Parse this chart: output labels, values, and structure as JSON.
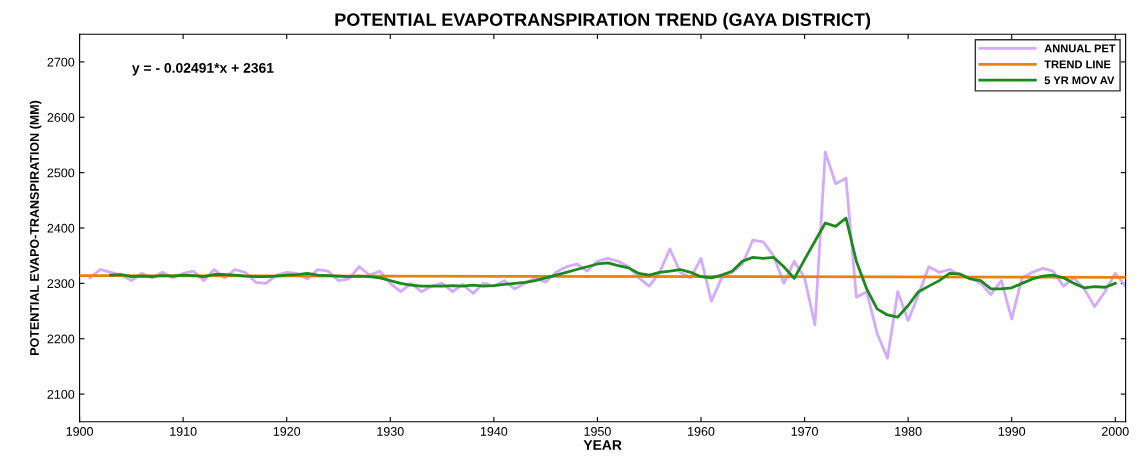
{
  "chart_data": {
    "type": "line",
    "title": "POTENTIAL EVAPOTRANSPIRATION TREND (GAYA DISTRICT)",
    "xlabel": "YEAR",
    "ylabel": "POTENTIAL EVAPO-TRANSPIRATION (MM)",
    "annotations": [
      "y = - 0.02491*x + 2361"
    ],
    "xlim": [
      1900,
      2001
    ],
    "xticks": [
      1900,
      1910,
      1920,
      1930,
      1940,
      1950,
      1960,
      1970,
      1980,
      1990,
      2000
    ],
    "ylim": [
      2050,
      2750
    ],
    "yticks": [
      2100,
      2200,
      2300,
      2400,
      2500,
      2600,
      2700
    ],
    "grid": false,
    "legend": "top right",
    "marker": "none",
    "line_style": "solid",
    "series": [
      {
        "name": "ANNUAL PET",
        "color": "#d4aaff",
        "x": [
          1901,
          1902,
          1903,
          1904,
          1905,
          1906,
          1907,
          1908,
          1909,
          1910,
          1911,
          1912,
          1913,
          1914,
          1915,
          1916,
          1917,
          1918,
          1919,
          1920,
          1921,
          1922,
          1923,
          1924,
          1925,
          1926,
          1927,
          1928,
          1929,
          1930,
          1931,
          1932,
          1933,
          1934,
          1935,
          1936,
          1937,
          1938,
          1939,
          1940,
          1941,
          1942,
          1943,
          1944,
          1945,
          1946,
          1947,
          1948,
          1949,
          1950,
          1951,
          1952,
          1953,
          1954,
          1955,
          1956,
          1957,
          1958,
          1959,
          1960,
          1961,
          1962,
          1963,
          1964,
          1965,
          1966,
          1967,
          1968,
          1969,
          1970,
          1971,
          1972,
          1973,
          1974,
          1975,
          1976,
          1977,
          1978,
          1979,
          1980,
          1981,
          1982,
          1983,
          1984,
          1985,
          1986,
          1987,
          1988,
          1989,
          1990,
          1991,
          1992,
          1993,
          1994,
          1995,
          1996,
          1997,
          1998,
          1999,
          2000,
          2001
        ],
        "values": [
          2310,
          2325,
          2320,
          2315,
          2305,
          2318,
          2310,
          2320,
          2310,
          2318,
          2322,
          2305,
          2325,
          2310,
          2325,
          2320,
          2302,
          2300,
          2315,
          2320,
          2318,
          2308,
          2325,
          2322,
          2305,
          2308,
          2330,
          2315,
          2322,
          2300,
          2285,
          2300,
          2285,
          2295,
          2300,
          2285,
          2298,
          2282,
          2300,
          2295,
          2305,
          2290,
          2300,
          2310,
          2302,
          2320,
          2330,
          2335,
          2322,
          2340,
          2345,
          2340,
          2330,
          2310,
          2295,
          2320,
          2362,
          2320,
          2310,
          2345,
          2268,
          2310,
          2320,
          2335,
          2378,
          2375,
          2350,
          2300,
          2340,
          2310,
          2225,
          2537,
          2480,
          2490,
          2275,
          2285,
          2210,
          2165,
          2285,
          2233,
          2280,
          2330,
          2320,
          2325,
          2315,
          2310,
          2300,
          2280,
          2305,
          2236,
          2310,
          2320,
          2327,
          2322,
          2295,
          2310,
          2290,
          2258,
          2285,
          2318,
          2295
        ]
      },
      {
        "name": "TREND LINE",
        "color": "#e8820c",
        "x": [
          1900,
          2001
        ],
        "values": [
          2314,
          2311
        ]
      },
      {
        "name": "5 YR MOV AV",
        "color": "#1a8a1a",
        "x": [
          1903,
          1904,
          1905,
          1906,
          1907,
          1908,
          1909,
          1910,
          1911,
          1912,
          1913,
          1914,
          1915,
          1916,
          1917,
          1918,
          1919,
          1920,
          1921,
          1922,
          1923,
          1924,
          1925,
          1926,
          1927,
          1928,
          1929,
          1930,
          1931,
          1932,
          1933,
          1934,
          1935,
          1936,
          1937,
          1938,
          1939,
          1940,
          1941,
          1942,
          1943,
          1944,
          1945,
          1946,
          1947,
          1948,
          1949,
          1950,
          1951,
          1952,
          1953,
          1954,
          1955,
          1956,
          1957,
          1958,
          1959,
          1960,
          1961,
          1962,
          1963,
          1964,
          1965,
          1966,
          1967,
          1968,
          1969,
          1970,
          1971,
          1972,
          1973,
          1974,
          1975,
          1976,
          1977,
          1978,
          1979,
          1980,
          1981,
          1982,
          1983,
          1984,
          1985,
          1986,
          1987,
          1988,
          1989,
          1990,
          1991,
          1992,
          1993,
          1994,
          1995,
          1996,
          1997,
          1998,
          1999,
          2000
        ],
        "values": [
          2315,
          2316,
          2312,
          2313,
          2312,
          2314,
          2313,
          2315,
          2314,
          2312,
          2316,
          2316,
          2315,
          2313,
          2312,
          2312,
          2313,
          2315,
          2316,
          2318,
          2315,
          2314,
          2313,
          2312,
          2313,
          2312,
          2310,
          2305,
          2300,
          2297,
          2295,
          2295,
          2295,
          2296,
          2295,
          2297,
          2295,
          2296,
          2298,
          2300,
          2302,
          2305,
          2310,
          2315,
          2320,
          2325,
          2330,
          2335,
          2337,
          2332,
          2328,
          2318,
          2315,
          2320,
          2322,
          2325,
          2320,
          2312,
          2310,
          2315,
          2322,
          2340,
          2347,
          2345,
          2347,
          2330,
          2309,
          2343,
          2376,
          2409,
          2403,
          2418,
          2340,
          2290,
          2254,
          2243,
          2239,
          2260,
          2285,
          2295,
          2305,
          2318,
          2317,
          2308,
          2305,
          2290,
          2290,
          2292,
          2300,
          2308,
          2313,
          2315,
          2310,
          2300,
          2292,
          2294,
          2293,
          2300
        ]
      }
    ]
  }
}
